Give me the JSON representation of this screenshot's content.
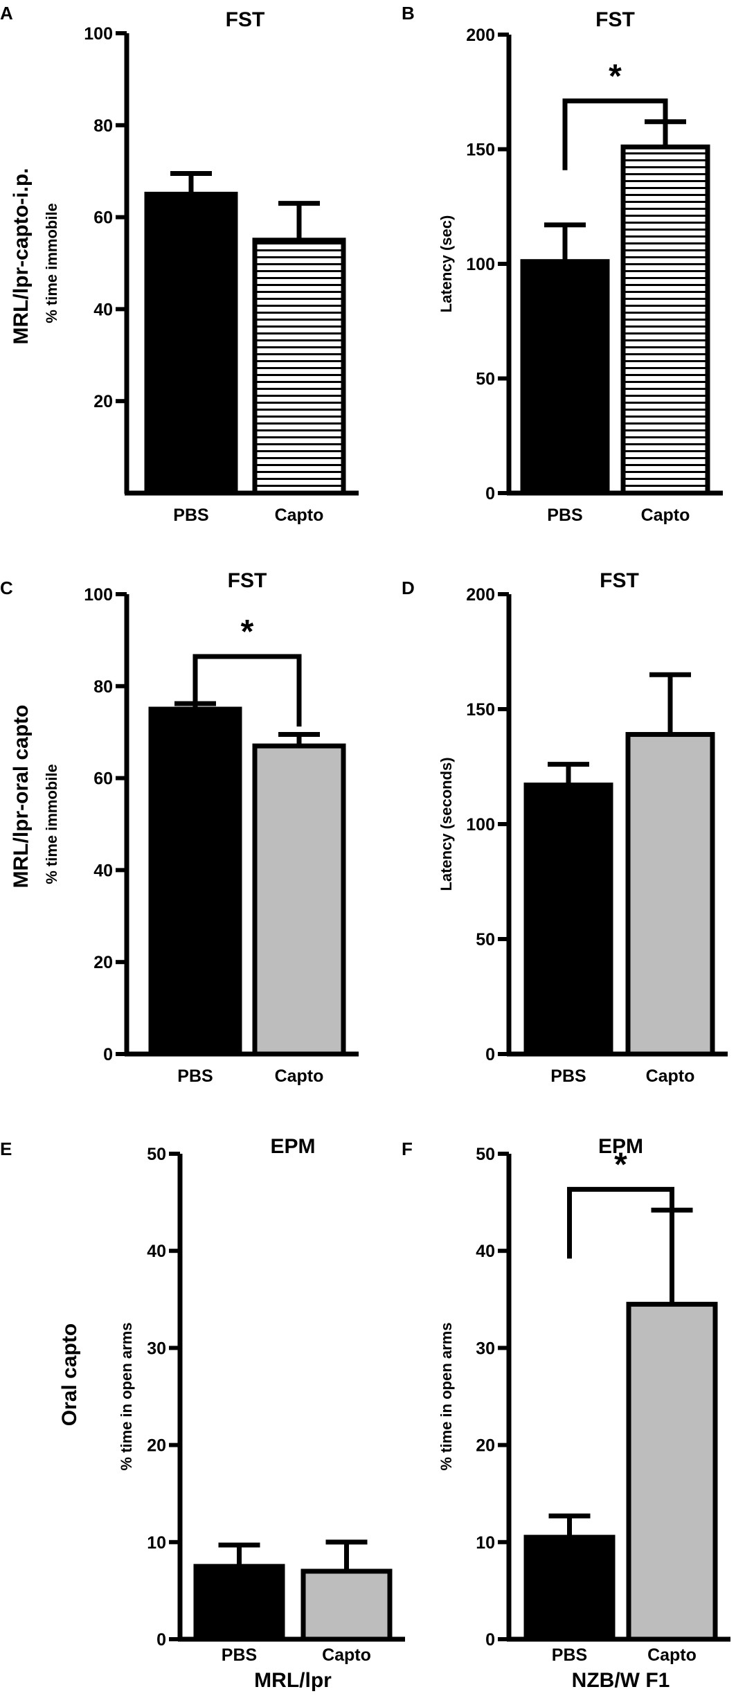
{
  "row_labels": [
    "MRL/lpr-capto-i.p.",
    "MRL/lpr-oral capto",
    "Oral capto"
  ],
  "chart_data": [
    {
      "panel": "A",
      "title": "FST",
      "type": "bar",
      "categories": [
        "PBS",
        "Capto"
      ],
      "values": [
        65,
        55
      ],
      "errors": [
        4.5,
        8
      ],
      "ylabel": "% time immobile",
      "ylim": [
        0,
        100
      ],
      "yticks": [
        20,
        40,
        60,
        80,
        100
      ],
      "ytick_labels": [
        "20",
        "40",
        "60",
        "80",
        "100"
      ],
      "fills": [
        "solid",
        "striped"
      ],
      "significance": null,
      "xlabel": ""
    },
    {
      "panel": "B",
      "title": "FST",
      "type": "bar",
      "categories": [
        "PBS",
        "Capto"
      ],
      "values": [
        101,
        151
      ],
      "errors": [
        16,
        11
      ],
      "ylabel": "Latency (sec)",
      "ylim": [
        0,
        200
      ],
      "yticks": [
        0,
        50,
        100,
        150,
        200
      ],
      "ytick_labels": [
        "0",
        "50",
        "100",
        "150",
        "200"
      ],
      "fills": [
        "solid",
        "striped"
      ],
      "significance": "*",
      "xlabel": ""
    },
    {
      "panel": "C",
      "title": "FST",
      "type": "bar",
      "categories": [
        "PBS",
        "Capto"
      ],
      "values": [
        75,
        67
      ],
      "errors": [
        1.2,
        2.5
      ],
      "ylabel": "% time immobile",
      "ylim": [
        0,
        100
      ],
      "yticks": [
        0,
        20,
        40,
        60,
        80,
        100
      ],
      "ytick_labels": [
        "0",
        "20",
        "40",
        "60",
        "80",
        "100"
      ],
      "fills": [
        "solid",
        "gray"
      ],
      "significance": "*",
      "xlabel": ""
    },
    {
      "panel": "D",
      "title": "FST",
      "type": "bar",
      "categories": [
        "PBS",
        "Capto"
      ],
      "values": [
        117,
        139
      ],
      "errors": [
        9,
        26
      ],
      "ylabel": "Latency (seconds)",
      "ylim": [
        0,
        200
      ],
      "yticks": [
        0,
        50,
        100,
        150,
        200
      ],
      "ytick_labels": [
        "0",
        "50",
        "100",
        "150",
        "200"
      ],
      "fills": [
        "solid",
        "gray"
      ],
      "significance": null,
      "xlabel": ""
    },
    {
      "panel": "E",
      "title": "EPM",
      "type": "bar",
      "categories": [
        "PBS",
        "Capto"
      ],
      "values": [
        7.5,
        7
      ],
      "errors": [
        2.2,
        3
      ],
      "ylabel": "% time in open arms",
      "ylim": [
        0,
        50
      ],
      "yticks": [
        0,
        10,
        20,
        30,
        40,
        50
      ],
      "ytick_labels": [
        "0",
        "10",
        "20",
        "30",
        "40",
        "50"
      ],
      "fills": [
        "solid",
        "gray"
      ],
      "significance": null,
      "xlabel": "MRL/lpr"
    },
    {
      "panel": "F",
      "title": "EPM",
      "type": "bar",
      "categories": [
        "PBS",
        "Capto"
      ],
      "values": [
        10.5,
        34.5
      ],
      "errors": [
        2.2,
        9.7
      ],
      "ylabel": "% time in open arms",
      "ylim": [
        0,
        50
      ],
      "yticks": [
        0,
        10,
        20,
        30,
        40,
        50
      ],
      "ytick_labels": [
        "0",
        "10",
        "20",
        "30",
        "40",
        "50"
      ],
      "fills": [
        "solid",
        "gray"
      ],
      "significance": "*",
      "xlabel": "NZB/W F1"
    }
  ],
  "colors": {
    "solid": "#000000",
    "gray": "#bdbdbd",
    "stripe": "#000000",
    "background": "#ffffff"
  }
}
